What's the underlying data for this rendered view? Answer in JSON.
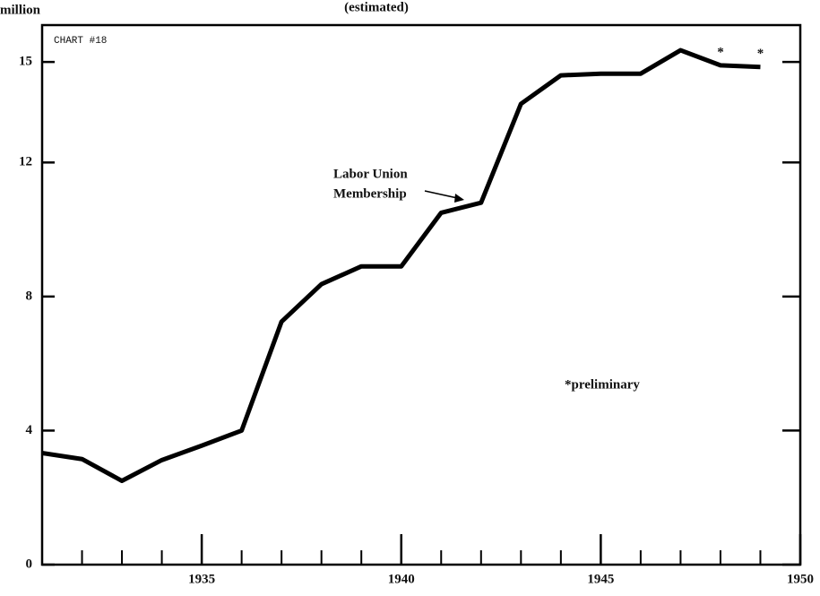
{
  "chart_data": {
    "type": "line",
    "title": "(estimated)",
    "y_label": "million",
    "chart_id": "CHART #18",
    "x": [
      1931,
      1932,
      1933,
      1934,
      1935,
      1936,
      1937,
      1938,
      1939,
      1940,
      1941,
      1942,
      1943,
      1944,
      1945,
      1946,
      1947,
      1948,
      1949
    ],
    "series": [
      {
        "name": "Labor Union Membership",
        "name_lines": [
          "Labor Union",
          "Membership"
        ],
        "color": "#000000",
        "values": [
          3.33,
          3.15,
          2.5,
          3.12,
          3.55,
          4.0,
          7.25,
          8.37,
          8.9,
          8.9,
          10.5,
          10.8,
          13.75,
          14.6,
          14.65,
          14.65,
          15.35,
          14.9,
          14.85
        ]
      }
    ],
    "annotations": [
      {
        "text": "*",
        "x": 1948
      },
      {
        "text": "*",
        "x": 1949
      },
      {
        "text": "*preliminary"
      }
    ],
    "xlim": [
      1931,
      1950
    ],
    "ylim": [
      0,
      16.1
    ],
    "xticks": [
      1935,
      1940,
      1945,
      1950
    ],
    "xminorticks": [
      1932,
      1933,
      1934,
      1936,
      1937,
      1938,
      1939,
      1941,
      1942,
      1943,
      1944,
      1946,
      1947,
      1948,
      1949
    ],
    "yticks": [
      0,
      4,
      8,
      12,
      15
    ],
    "grid": false
  }
}
